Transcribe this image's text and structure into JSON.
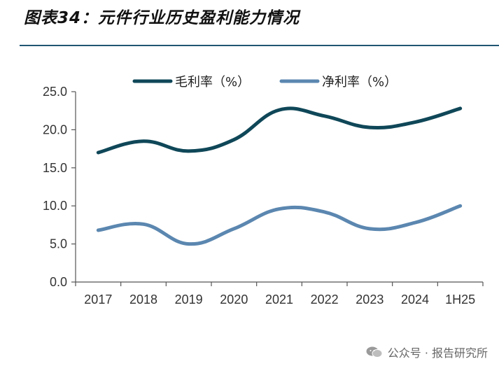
{
  "header": {
    "title": "图表34：元件行业历史盈利能力情况"
  },
  "chart_data": {
    "type": "line",
    "title": "图表34：元件行业历史盈利能力情况",
    "categories": [
      "2017",
      "2018",
      "2019",
      "2020",
      "2021",
      "2022",
      "2023",
      "2024",
      "1H25"
    ],
    "series": [
      {
        "name": "毛利率（%）",
        "color": "#0f4758",
        "values": [
          17.0,
          18.5,
          17.2,
          18.7,
          22.6,
          21.8,
          20.3,
          21.0,
          22.8
        ]
      },
      {
        "name": "净利率（%）",
        "color": "#5b87b0",
        "values": [
          6.8,
          7.6,
          5.0,
          7.0,
          9.6,
          9.2,
          7.0,
          7.8,
          10.0
        ]
      }
    ],
    "ylim": [
      0,
      25
    ],
    "yticks": [
      "0.0",
      "5.0",
      "10.0",
      "15.0",
      "20.0",
      "25.0"
    ],
    "xlabel": "",
    "ylabel": "",
    "grid": false,
    "legend": "top"
  },
  "watermark": {
    "text": "公众号 · 报告研究所",
    "icon": "wechat-icon"
  }
}
